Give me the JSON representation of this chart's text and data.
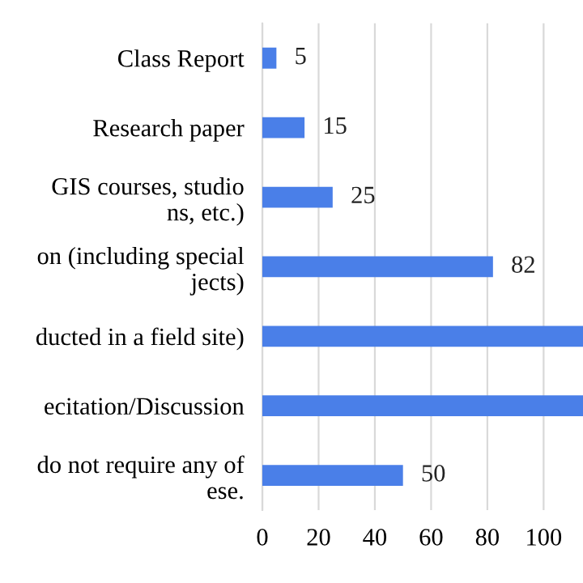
{
  "chart_data": {
    "type": "bar",
    "orientation": "horizontal",
    "categories": [
      "Class Report",
      "Research paper",
      "GIS courses, studio\nns, etc.)",
      "on (including special\njects)",
      "ducted in a field site)",
      "ecitation/Discussion",
      "do not require any of\nese."
    ],
    "values": [
      5,
      15,
      25,
      82,
      114,
      114,
      50
    ],
    "value_labels": [
      "5",
      "15",
      "25",
      "82",
      null,
      null,
      "50"
    ],
    "color": "#4a7fe8",
    "xlim": [
      0,
      114
    ],
    "xticks": [
      0,
      20,
      40,
      60,
      80,
      100
    ],
    "grid": "x"
  }
}
